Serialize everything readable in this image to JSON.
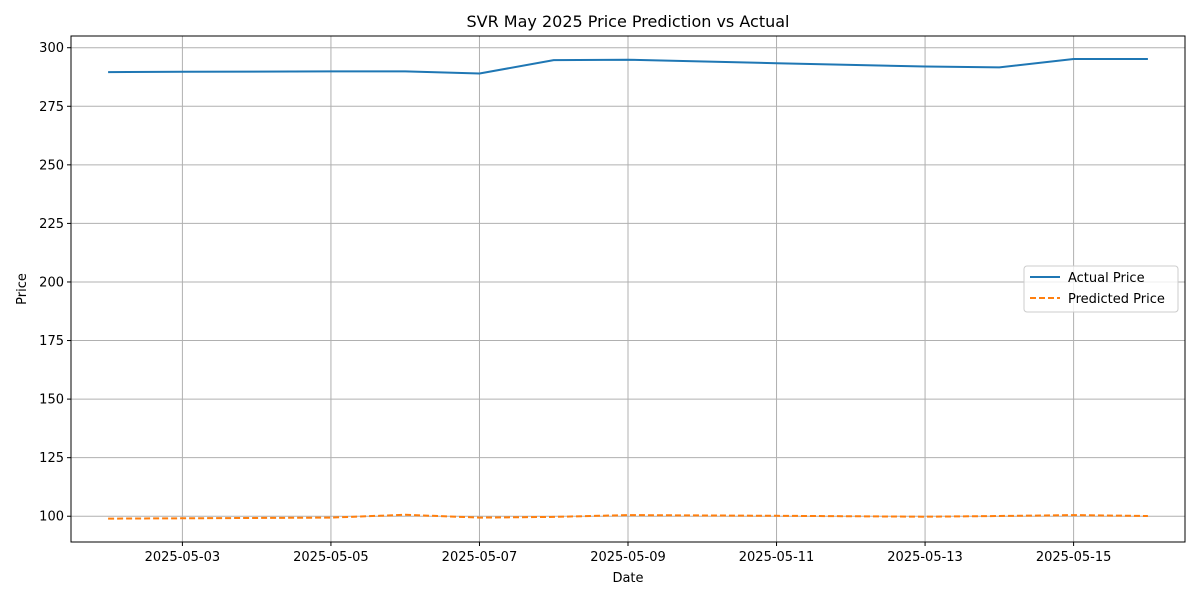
{
  "chart_data": {
    "type": "line",
    "title": "SVR May 2025 Price Prediction vs Actual",
    "xlabel": "Date",
    "ylabel": "Price",
    "x": [
      "2025-05-02",
      "2025-05-03",
      "2025-05-05",
      "2025-05-06",
      "2025-05-07",
      "2025-05-08",
      "2025-05-09",
      "2025-05-11",
      "2025-05-13",
      "2025-05-14",
      "2025-05-15",
      "2025-05-16"
    ],
    "xlim": [
      "2025-05-01T12:00",
      "2025-05-16T12:00"
    ],
    "ylim": [
      89,
      305
    ],
    "x_ticks": [
      "2025-05-03",
      "2025-05-05",
      "2025-05-07",
      "2025-05-09",
      "2025-05-11",
      "2025-05-13",
      "2025-05-15"
    ],
    "y_ticks": [
      100,
      125,
      150,
      175,
      200,
      225,
      250,
      275,
      300
    ],
    "grid": true,
    "legend_position": "center-right",
    "series": [
      {
        "name": "Actual Price",
        "style": "solid",
        "color": "#1f77b4",
        "values": [
          289.6,
          289.7,
          289.9,
          289.9,
          289.0,
          294.7,
          294.9,
          293.4,
          292.0,
          291.6,
          295.2,
          295.2
        ]
      },
      {
        "name": "Predicted Price",
        "style": "dashed",
        "color": "#ff7f0e",
        "values": [
          99.0,
          99.1,
          99.4,
          100.6,
          99.4,
          99.7,
          100.5,
          100.2,
          99.8,
          100.1,
          100.5,
          100.1
        ]
      }
    ]
  }
}
